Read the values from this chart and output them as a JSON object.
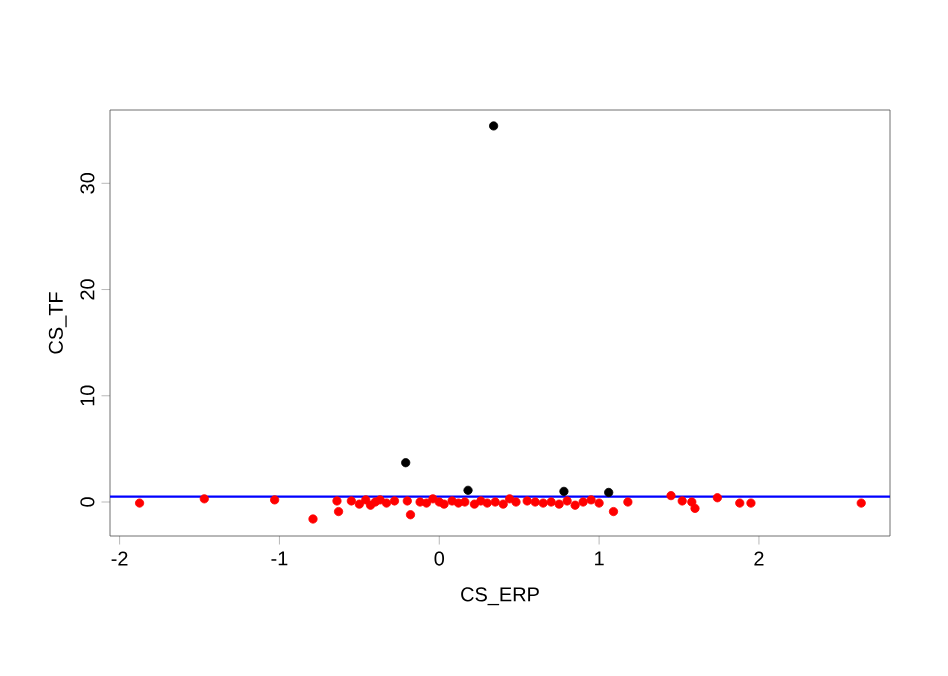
{
  "chart_data": {
    "type": "scatter",
    "xlabel": "CS_ERP",
    "ylabel": "CS_TF",
    "xlim": [
      -2.06,
      2.82
    ],
    "ylim": [
      -3.2,
      36.9
    ],
    "xticks": [
      -2,
      -1,
      0,
      1,
      2
    ],
    "yticks": [
      0,
      10,
      20,
      30
    ],
    "marker": "circle",
    "grid": false,
    "legend": false,
    "ref_lines": [
      {
        "axis": "y",
        "value": 0.5,
        "color": "#0000ff"
      }
    ],
    "series": [
      {
        "color": "#ff0000",
        "x": [
          -1.875,
          -1.47,
          -1.03,
          -0.79,
          -0.64,
          -0.63,
          -0.55,
          -0.5,
          -0.46,
          -0.43,
          -0.4,
          -0.37,
          -0.33,
          -0.28,
          -0.2,
          -0.18,
          -0.12,
          -0.08,
          -0.04,
          0.0,
          0.03,
          0.08,
          0.12,
          0.16,
          0.22,
          0.26,
          0.3,
          0.35,
          0.4,
          0.44,
          0.48,
          0.55,
          0.6,
          0.65,
          0.7,
          0.75,
          0.8,
          0.85,
          0.9,
          0.95,
          1.0,
          1.09,
          1.18,
          1.45,
          1.52,
          1.58,
          1.6,
          1.74,
          1.88,
          1.95,
          2.64
        ],
        "values": [
          -0.1,
          0.3,
          0.2,
          -1.6,
          0.1,
          -0.9,
          0.1,
          -0.2,
          0.2,
          -0.3,
          0.0,
          0.2,
          -0.1,
          0.1,
          0.1,
          -1.2,
          0.0,
          -0.1,
          0.3,
          0.0,
          -0.2,
          0.1,
          -0.1,
          0.0,
          -0.2,
          0.1,
          -0.1,
          0.0,
          -0.2,
          0.3,
          0.0,
          0.1,
          0.0,
          -0.1,
          0.0,
          -0.2,
          0.1,
          -0.3,
          0.0,
          0.2,
          -0.1,
          -0.9,
          0.0,
          0.6,
          0.1,
          0.0,
          -0.6,
          0.4,
          -0.1,
          -0.1,
          -0.1
        ]
      },
      {
        "color": "#000000",
        "x": [
          -0.21,
          0.18,
          0.34,
          0.78,
          1.06
        ],
        "values": [
          3.7,
          1.1,
          35.4,
          1.0,
          0.9
        ]
      }
    ]
  }
}
